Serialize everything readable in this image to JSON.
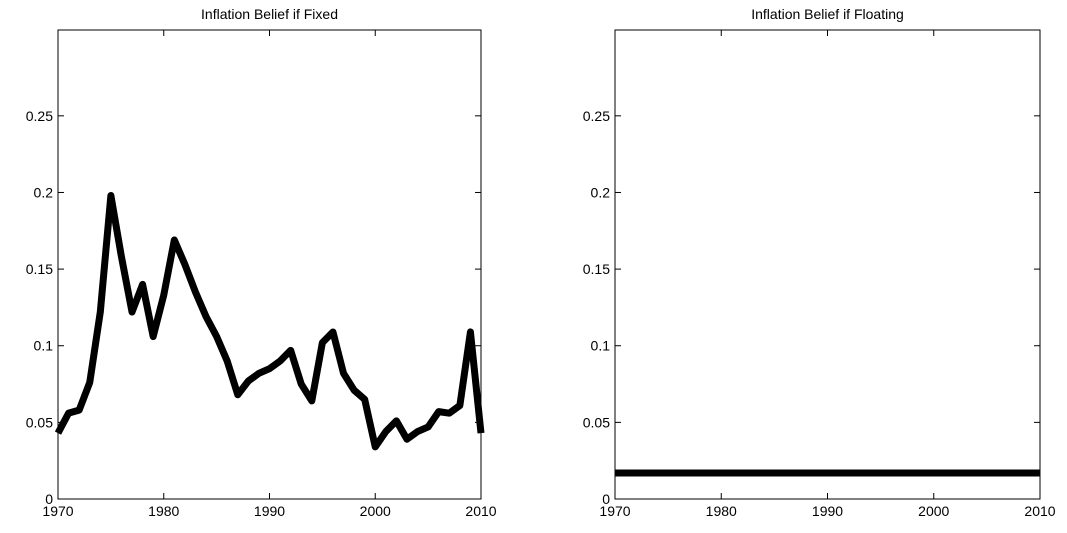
{
  "chart_data": [
    {
      "type": "line",
      "title": "Inflation Belief if Fixed",
      "x": [
        1970,
        1971,
        1972,
        1973,
        1974,
        1975,
        1976,
        1977,
        1978,
        1979,
        1980,
        1981,
        1982,
        1983,
        1984,
        1985,
        1986,
        1987,
        1988,
        1989,
        1990,
        1991,
        1992,
        1993,
        1994,
        1995,
        1996,
        1997,
        1998,
        1999,
        2000,
        2001,
        2002,
        2003,
        2004,
        2005,
        2006,
        2007,
        2008,
        2009,
        2010
      ],
      "values": [
        0.043,
        0.056,
        0.058,
        0.076,
        0.122,
        0.198,
        0.158,
        0.122,
        0.14,
        0.106,
        0.133,
        0.169,
        0.153,
        0.135,
        0.119,
        0.106,
        0.09,
        0.068,
        0.077,
        0.082,
        0.085,
        0.09,
        0.097,
        0.075,
        0.064,
        0.102,
        0.109,
        0.082,
        0.071,
        0.065,
        0.034,
        0.044,
        0.051,
        0.039,
        0.044,
        0.047,
        0.057,
        0.056,
        0.061,
        0.109,
        0.043
      ],
      "color": "#000000",
      "xlim": [
        1970,
        2010
      ],
      "xticks": [
        1970,
        1980,
        1990,
        2000,
        2010
      ],
      "ylim": [
        0,
        0.306
      ],
      "yticks": [
        0,
        0.05,
        0.1,
        0.15,
        0.2,
        0.25
      ],
      "grid": false
    },
    {
      "type": "line",
      "title": "Inflation Belief if Floating",
      "x": [
        1970,
        2010
      ],
      "values": [
        0.017,
        0.017
      ],
      "color": "#000000",
      "xlim": [
        1970,
        2010
      ],
      "xticks": [
        1970,
        1980,
        1990,
        2000,
        2010
      ],
      "ylim": [
        0,
        0.306
      ],
      "yticks": [
        0,
        0.05,
        0.1,
        0.15,
        0.2,
        0.25
      ],
      "grid": false
    }
  ]
}
